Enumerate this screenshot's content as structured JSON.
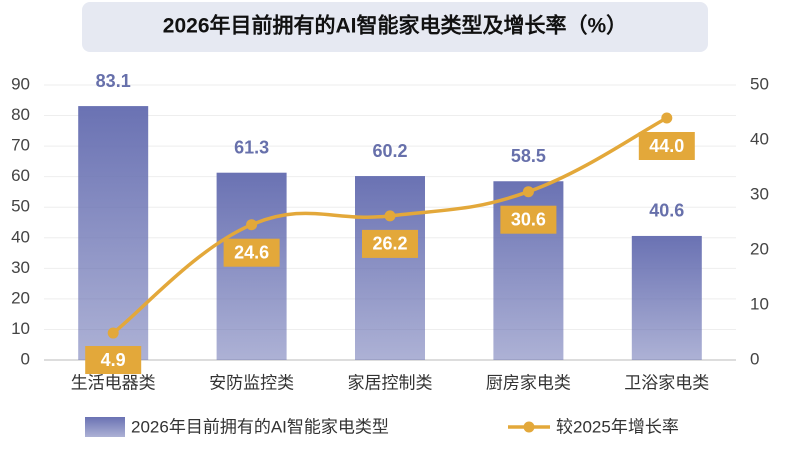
{
  "chart_data": {
    "type": "bar-line",
    "title": "2026年目前拥有的AI智能家电类型及增长率（%）",
    "categories": [
      "生活电器类",
      "安防监控类",
      "家居控制类",
      "厨房家电类",
      "卫浴家电类"
    ],
    "series": [
      {
        "name": "2026年目前拥有的AI智能家电类型",
        "color": "#6a72b3",
        "values": [
          83.1,
          61.3,
          60.2,
          58.5,
          40.6
        ]
      },
      {
        "name": "较2025年增长率",
        "color": "#e3a83a",
        "axis": "y2",
        "values": [
          4.9,
          24.6,
          26.2,
          30.6,
          44.0
        ],
        "value_labels": [
          "4.9",
          "24.6",
          "26.2",
          "30.6",
          "44.0"
        ]
      }
    ],
    "ylim": [
      0,
      90
    ],
    "yticks": [
      0,
      10,
      20,
      30,
      40,
      50,
      60,
      70,
      80,
      90
    ],
    "y2lim": [
      0,
      50
    ],
    "y2ticks": [
      0,
      10,
      20,
      30,
      40,
      50
    ],
    "grid": true,
    "legend": "bottom"
  }
}
